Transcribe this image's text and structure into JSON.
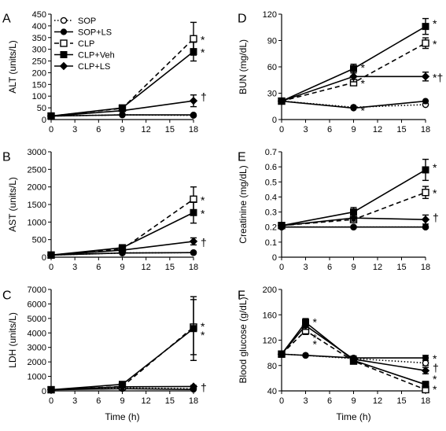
{
  "chart_data": [
    {
      "type": "line",
      "panel_label": "A",
      "title": "",
      "xlabel": "",
      "ylabel": "ALT (units/L)",
      "x": [
        0,
        9,
        18
      ],
      "xlim": [
        0,
        18
      ],
      "xticks": [
        0,
        3,
        6,
        9,
        12,
        15,
        18
      ],
      "ylim": [
        0,
        450
      ],
      "yticks": [
        0,
        50,
        100,
        150,
        200,
        250,
        300,
        350,
        400,
        450
      ],
      "legend": {
        "placement": "top-left",
        "entries": [
          "SOP",
          "SOP+LS",
          "CLP",
          "CLP+Veh",
          "CLP+LS"
        ]
      },
      "series": [
        {
          "name": "SOP",
          "marker": "open-circle",
          "dash": "dotted",
          "values": [
            15,
            20,
            18
          ],
          "errors": [
            0,
            0,
            0
          ]
        },
        {
          "name": "SOP+LS",
          "marker": "filled-circle",
          "dash": "solid",
          "values": [
            15,
            20,
            20
          ],
          "errors": [
            0,
            0,
            0
          ]
        },
        {
          "name": "CLP",
          "marker": "open-square",
          "dash": "dashed",
          "values": [
            15,
            48,
            345
          ],
          "errors": [
            0,
            0,
            70
          ]
        },
        {
          "name": "CLP+Veh",
          "marker": "filled-square",
          "dash": "solid",
          "values": [
            15,
            50,
            290
          ],
          "errors": [
            0,
            0,
            40
          ]
        },
        {
          "name": "CLP+LS",
          "marker": "filled-diamond",
          "dash": "solid",
          "values": [
            15,
            38,
            80
          ],
          "errors": [
            0,
            0,
            25
          ]
        }
      ],
      "annotations": [
        {
          "text": "*",
          "x": 18,
          "y": 345
        },
        {
          "text": "*",
          "x": 18,
          "y": 290
        },
        {
          "text": "†",
          "x": 18,
          "y": 100
        }
      ]
    },
    {
      "type": "line",
      "panel_label": "B",
      "title": "",
      "xlabel": "",
      "ylabel": "AST (units/L)",
      "x": [
        0,
        9,
        18
      ],
      "xlim": [
        0,
        18
      ],
      "xticks": [
        0,
        3,
        6,
        9,
        12,
        15,
        18
      ],
      "ylim": [
        0,
        3000
      ],
      "yticks": [
        0,
        500,
        1000,
        1500,
        2000,
        2500,
        3000
      ],
      "series": [
        {
          "name": "SOP",
          "marker": "open-circle",
          "dash": "dotted",
          "values": [
            60,
            120,
            130
          ],
          "errors": [
            0,
            0,
            0
          ]
        },
        {
          "name": "SOP+LS",
          "marker": "filled-circle",
          "dash": "solid",
          "values": [
            60,
            120,
            130
          ],
          "errors": [
            0,
            0,
            0
          ]
        },
        {
          "name": "CLP",
          "marker": "open-square",
          "dash": "dashed",
          "values": [
            60,
            230,
            1650
          ],
          "errors": [
            0,
            0,
            350
          ]
        },
        {
          "name": "CLP+Veh",
          "marker": "filled-square",
          "dash": "solid",
          "values": [
            60,
            270,
            1270
          ],
          "errors": [
            0,
            0,
            300
          ]
        },
        {
          "name": "CLP+LS",
          "marker": "filled-diamond",
          "dash": "solid",
          "values": [
            60,
            200,
            450
          ],
          "errors": [
            0,
            0,
            100
          ]
        }
      ],
      "annotations": [
        {
          "text": "*",
          "x": 18,
          "y": 1650
        },
        {
          "text": "*",
          "x": 18,
          "y": 1270
        },
        {
          "text": "†",
          "x": 18,
          "y": 450
        }
      ]
    },
    {
      "type": "line",
      "panel_label": "C",
      "title": "",
      "xlabel": "Time (h)",
      "ylabel": "LDH (units/L)",
      "x": [
        0,
        9,
        18
      ],
      "xlim": [
        0,
        18
      ],
      "xticks": [
        0,
        3,
        6,
        9,
        12,
        15,
        18
      ],
      "ylim": [
        0,
        7000
      ],
      "yticks": [
        0,
        1000,
        2000,
        3000,
        4000,
        5000,
        6000,
        7000
      ],
      "series": [
        {
          "name": "SOP",
          "marker": "open-circle",
          "dash": "dotted",
          "values": [
            80,
            200,
            150
          ],
          "errors": [
            0,
            0,
            0
          ]
        },
        {
          "name": "SOP+LS",
          "marker": "filled-circle",
          "dash": "solid",
          "values": [
            80,
            150,
            100
          ],
          "errors": [
            0,
            0,
            0
          ]
        },
        {
          "name": "CLP",
          "marker": "open-square",
          "dash": "dashed",
          "values": [
            80,
            300,
            4400
          ],
          "errors": [
            0,
            0,
            1900
          ]
        },
        {
          "name": "CLP+Veh",
          "marker": "filled-square",
          "dash": "solid",
          "values": [
            80,
            450,
            4300
          ],
          "errors": [
            0,
            0,
            2200
          ]
        },
        {
          "name": "CLP+LS",
          "marker": "filled-diamond",
          "dash": "solid",
          "values": [
            80,
            280,
            300
          ],
          "errors": [
            0,
            0,
            80
          ]
        }
      ],
      "annotations": [
        {
          "text": "*",
          "x": 18,
          "y": 4500
        },
        {
          "text": "*",
          "x": 18,
          "y": 3900
        },
        {
          "text": "†",
          "x": 18,
          "y": 300
        }
      ]
    },
    {
      "type": "line",
      "panel_label": "D",
      "title": "",
      "xlabel": "",
      "ylabel": "BUN (mg/dL)",
      "x": [
        0,
        9,
        18
      ],
      "xlim": [
        0,
        18
      ],
      "xticks": [
        0,
        3,
        6,
        9,
        12,
        15,
        18
      ],
      "ylim": [
        0,
        120
      ],
      "yticks": [
        0,
        30,
        60,
        90,
        120
      ],
      "series": [
        {
          "name": "SOP",
          "marker": "open-circle",
          "dash": "dotted",
          "values": [
            21,
            14,
            17
          ],
          "errors": [
            0,
            0,
            0
          ]
        },
        {
          "name": "SOP+LS",
          "marker": "filled-circle",
          "dash": "solid",
          "values": [
            21,
            13,
            21
          ],
          "errors": [
            0,
            0,
            0
          ]
        },
        {
          "name": "CLP",
          "marker": "open-square",
          "dash": "dashed",
          "values": [
            21,
            42,
            87
          ],
          "errors": [
            0,
            3,
            6
          ]
        },
        {
          "name": "CLP+Veh",
          "marker": "filled-square",
          "dash": "solid",
          "values": [
            21,
            58,
            106
          ],
          "errors": [
            0,
            5,
            9
          ]
        },
        {
          "name": "CLP+LS",
          "marker": "filled-diamond",
          "dash": "solid",
          "values": [
            21,
            49,
            49
          ],
          "errors": [
            0,
            6,
            5
          ]
        }
      ],
      "annotations": [
        {
          "text": "*",
          "x": 9,
          "y": 60
        },
        {
          "text": "*",
          "x": 9,
          "y": 42
        },
        {
          "text": "*",
          "x": 9,
          "y": 11
        },
        {
          "text": "*",
          "x": 18,
          "y": 110
        },
        {
          "text": "*",
          "x": 18,
          "y": 87
        },
        {
          "text": "*†",
          "x": 18,
          "y": 49
        }
      ]
    },
    {
      "type": "line",
      "panel_label": "E",
      "title": "",
      "xlabel": "",
      "ylabel": "Creatinine (mg/dL)",
      "x": [
        0,
        9,
        18
      ],
      "xlim": [
        0,
        18
      ],
      "xticks": [
        0,
        3,
        6,
        9,
        12,
        15,
        18
      ],
      "ylim": [
        0,
        0.7
      ],
      "yticks": [
        0,
        0.1,
        0.2,
        0.3,
        0.4,
        0.5,
        0.6,
        0.7
      ],
      "series": [
        {
          "name": "SOP",
          "marker": "open-circle",
          "dash": "dotted",
          "values": [
            0.2,
            0.2,
            0.2
          ],
          "errors": [
            0,
            0,
            0
          ]
        },
        {
          "name": "SOP+LS",
          "marker": "filled-circle",
          "dash": "solid",
          "values": [
            0.2,
            0.2,
            0.2
          ],
          "errors": [
            0,
            0,
            0
          ]
        },
        {
          "name": "CLP",
          "marker": "open-square",
          "dash": "dashed",
          "values": [
            0.21,
            0.25,
            0.43
          ],
          "errors": [
            0,
            0.02,
            0.04
          ]
        },
        {
          "name": "CLP+Veh",
          "marker": "filled-square",
          "dash": "solid",
          "values": [
            0.21,
            0.3,
            0.58
          ],
          "errors": [
            0,
            0.03,
            0.07
          ]
        },
        {
          "name": "CLP+LS",
          "marker": "filled-diamond",
          "dash": "solid",
          "values": [
            0.21,
            0.26,
            0.25
          ],
          "errors": [
            0,
            0.02,
            0.03
          ]
        }
      ],
      "annotations": [
        {
          "text": "*",
          "x": 18,
          "y": 0.6
        },
        {
          "text": "*",
          "x": 18,
          "y": 0.43
        },
        {
          "text": "†",
          "x": 18,
          "y": 0.27
        }
      ]
    },
    {
      "type": "line",
      "panel_label": "F",
      "title": "",
      "xlabel": "Time (h)",
      "ylabel": "Blood glucose (g/dL)",
      "x": [
        0,
        3,
        9,
        18
      ],
      "xlim": [
        0,
        18
      ],
      "xticks": [
        0,
        3,
        6,
        9,
        12,
        15,
        18
      ],
      "ylim": [
        40,
        200
      ],
      "yticks": [
        40,
        80,
        120,
        160,
        200
      ],
      "series": [
        {
          "name": "SOP",
          "marker": "open-circle",
          "dash": "dotted",
          "values": [
            98,
            96,
            91,
            84
          ],
          "errors": [
            0,
            0,
            3,
            4
          ]
        },
        {
          "name": "SOP+LS",
          "marker": "filled-circle",
          "dash": "solid",
          "values": [
            98,
            96,
            92,
            92
          ],
          "errors": [
            0,
            0,
            3,
            4
          ]
        },
        {
          "name": "CLP",
          "marker": "open-square",
          "dash": "dashed",
          "values": [
            98,
            135,
            87,
            42
          ],
          "errors": [
            0,
            6,
            4,
            4
          ]
        },
        {
          "name": "CLP+Veh",
          "marker": "filled-square",
          "dash": "solid",
          "values": [
            98,
            148,
            88,
            50
          ],
          "errors": [
            0,
            6,
            5,
            5
          ]
        },
        {
          "name": "CLP+LS",
          "marker": "filled-diamond",
          "dash": "solid",
          "values": [
            98,
            143,
            90,
            72
          ],
          "errors": [
            0,
            6,
            5,
            5
          ]
        }
      ],
      "annotations": [
        {
          "text": "*",
          "x": 3,
          "y": 150
        },
        {
          "text": "*",
          "x": 3,
          "y": 125
        },
        {
          "text": "*",
          "x": 3,
          "y": 115
        },
        {
          "text": "*",
          "x": 18,
          "y": 92
        },
        {
          "text": "†",
          "x": 18,
          "y": 78
        },
        {
          "text": "*",
          "x": 18,
          "y": 60
        },
        {
          "text": "*",
          "x": 18,
          "y": 44
        }
      ]
    }
  ]
}
